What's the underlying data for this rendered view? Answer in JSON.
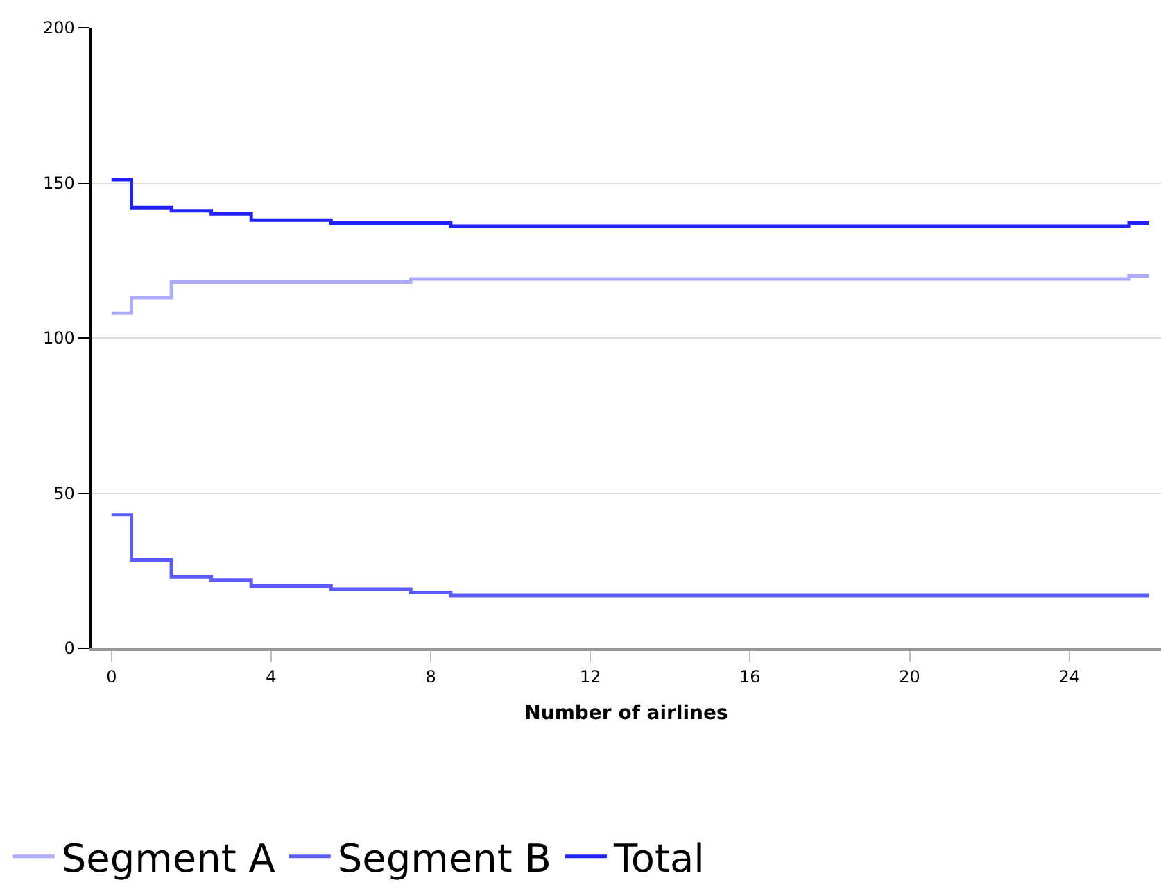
{
  "chart_data": {
    "type": "step",
    "xlabel": "Number of airlines",
    "x": [
      0,
      1,
      2,
      3,
      4,
      5,
      6,
      7,
      8,
      9,
      10,
      11,
      12,
      13,
      14,
      15,
      16,
      17,
      18,
      19,
      20,
      21,
      22,
      23,
      24,
      25,
      26
    ],
    "series": [
      {
        "name": "Segment A",
        "color": "#aaaaff",
        "values": [
          108,
          113,
          118,
          118,
          118,
          118,
          118,
          118,
          119,
          119,
          119,
          119,
          119,
          119,
          119,
          119,
          119,
          119,
          119,
          119,
          119,
          119,
          119,
          119,
          119,
          119,
          120
        ]
      },
      {
        "name": "Segment B",
        "color": "#5b5bff",
        "values": [
          43,
          28.5,
          23,
          22,
          20,
          20,
          19,
          19,
          18,
          17,
          17,
          17,
          17,
          17,
          17,
          17,
          17,
          17,
          17,
          17,
          17,
          17,
          17,
          17,
          17,
          17,
          17
        ]
      },
      {
        "name": "Total",
        "color": "#2222ff",
        "values": [
          151,
          142,
          141,
          140,
          138,
          138,
          137,
          137,
          137,
          136,
          136,
          136,
          136,
          136,
          136,
          136,
          136,
          136,
          136,
          136,
          136,
          136,
          136,
          136,
          136,
          136,
          137
        ]
      }
    ],
    "xlim": [
      -0.5,
      26.3
    ],
    "xticks": [
      0,
      4,
      8,
      12,
      16,
      20,
      24
    ],
    "ylim": [
      0,
      200
    ],
    "yticks": [
      0,
      50,
      100,
      150,
      200
    ],
    "grid": "y",
    "legend": "bottom"
  }
}
